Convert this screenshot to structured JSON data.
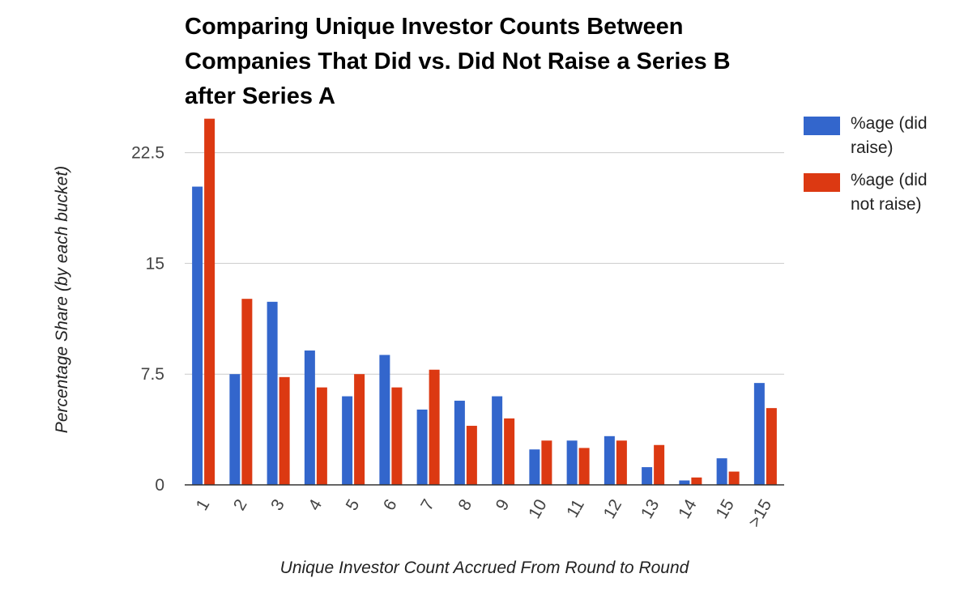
{
  "chart_data": {
    "type": "bar",
    "title": "Comparing Unique Investor Counts Between Companies That Did vs. Did Not Raise a Series B after Series A",
    "xlabel": "Unique Investor Count Accrued From Round to Round",
    "ylabel": "Percentage Share (by each bucket)",
    "categories": [
      "1",
      "2",
      "3",
      "4",
      "5",
      "6",
      "7",
      "8",
      "9",
      "10",
      "11",
      "12",
      "13",
      "14",
      "15",
      ">15"
    ],
    "series": [
      {
        "name": "%age (did raise)",
        "color": "#3366cc",
        "values": [
          20.2,
          7.5,
          12.4,
          9.1,
          6.0,
          8.8,
          5.1,
          5.7,
          6.0,
          2.4,
          3.0,
          3.3,
          1.2,
          0.3,
          1.8,
          6.9
        ]
      },
      {
        "name": "%age (did not raise)",
        "color": "#dc3912",
        "values": [
          24.8,
          12.6,
          7.3,
          6.6,
          7.5,
          6.6,
          7.8,
          4.0,
          4.5,
          3.0,
          2.5,
          3.0,
          2.7,
          0.5,
          0.9,
          5.2
        ]
      }
    ],
    "ylim": [
      0,
      25
    ],
    "yticks": [
      0,
      7.5,
      15,
      22.5
    ],
    "ytick_labels": [
      "0",
      "7.5",
      "15",
      "22.5"
    ],
    "grid": true,
    "legend": "right"
  }
}
